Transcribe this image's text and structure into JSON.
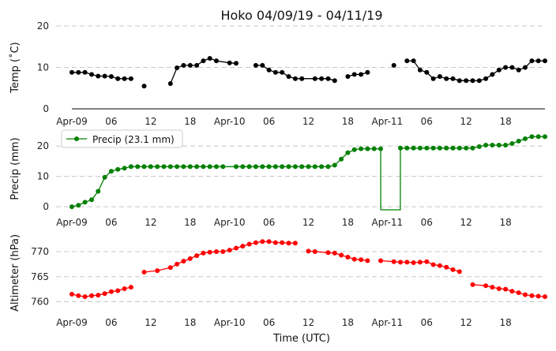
{
  "title": "Hoko 04/09/19 - 04/11/19",
  "xlabel": "Time (UTC)",
  "x_tick_labels": [
    "Apr-09",
    "06",
    "12",
    "18",
    "Apr-10",
    "06",
    "12",
    "18",
    "Apr-11",
    "06",
    "12",
    "18"
  ],
  "chart_data": [
    {
      "type": "line",
      "ylabel": "Temp (˚C)",
      "ylim": [
        0,
        20
      ],
      "yticks": [
        0,
        10,
        20
      ],
      "grid": true,
      "color": "#000000",
      "series": [
        {
          "hours": [
            0,
            1,
            2,
            3,
            4,
            5,
            6,
            7,
            8,
            9,
            10,
            11,
            13,
            15,
            16,
            17,
            18,
            19,
            20,
            21,
            22,
            24,
            25,
            26,
            27,
            28,
            29,
            30,
            31,
            32,
            33,
            34,
            35,
            37,
            38,
            39,
            40,
            41,
            42,
            43,
            44,
            45,
            48,
            49,
            50,
            51,
            52,
            53,
            54,
            55,
            56,
            57,
            58,
            59,
            60,
            61,
            62,
            63,
            64,
            65,
            66,
            67,
            68,
            69,
            70,
            71,
            72
          ],
          "values": [
            8.8,
            8.8,
            8.8,
            8.3,
            7.9,
            7.9,
            7.8,
            7.3,
            7.3,
            7.3,
            null,
            5.5,
            null,
            6.1,
            9.9,
            10.5,
            10.5,
            10.5,
            11.6,
            12.2,
            11.6,
            11.1,
            11.0,
            null,
            null,
            10.5,
            10.5,
            9.4,
            8.8,
            8.8,
            7.8,
            7.3,
            7.3,
            7.3,
            7.3,
            7.3,
            6.8,
            null,
            7.8,
            8.3,
            8.3,
            8.8,
            null,
            10.5,
            null,
            11.6,
            11.6,
            9.4,
            8.8,
            7.3,
            7.8,
            7.3,
            7.3,
            6.8,
            6.8,
            6.8,
            6.8,
            7.3,
            8.3,
            9.4,
            10.0,
            10.0,
            9.4,
            10.0,
            11.6,
            11.6,
            11.6
          ]
        }
      ]
    },
    {
      "type": "line",
      "ylabel": "Precip (mm)",
      "ylim": [
        -1,
        26
      ],
      "yticks": [
        0,
        10,
        20
      ],
      "grid": true,
      "color": "#008000",
      "legend": "Precip (23.1 mm)",
      "legend_position": "top-left",
      "series": [
        {
          "name": "Precip (23.1 mm)",
          "hours": [
            0,
            1,
            2,
            3,
            4,
            5,
            6,
            7,
            8,
            9,
            10,
            11,
            12,
            13,
            14,
            15,
            16,
            17,
            18,
            19,
            20,
            21,
            22,
            23,
            25,
            26,
            27,
            28,
            29,
            30,
            31,
            32,
            33,
            34,
            35,
            36,
            37,
            38,
            39,
            40,
            41,
            42,
            43,
            44,
            45,
            46,
            47,
            47.01,
            49.99,
            50,
            51,
            52,
            53,
            54,
            55,
            56,
            57,
            58,
            59,
            60,
            61,
            62,
            63,
            64,
            65,
            66,
            67,
            68,
            69,
            70,
            71,
            72
          ],
          "values": [
            0.0,
            0.5,
            1.5,
            2.3,
            5.1,
            9.7,
            11.7,
            12.3,
            12.7,
            13.2,
            13.2,
            13.2,
            13.2,
            13.2,
            13.2,
            13.2,
            13.2,
            13.2,
            13.2,
            13.2,
            13.2,
            13.2,
            13.2,
            13.2,
            13.2,
            13.2,
            13.2,
            13.2,
            13.2,
            13.2,
            13.2,
            13.2,
            13.2,
            13.2,
            13.2,
            13.2,
            13.2,
            13.2,
            13.2,
            13.7,
            15.7,
            17.8,
            18.8,
            19.1,
            19.1,
            19.1,
            19.1,
            -1.0,
            -1.0,
            19.3,
            19.3,
            19.3,
            19.3,
            19.3,
            19.3,
            19.3,
            19.3,
            19.3,
            19.3,
            19.3,
            19.3,
            19.8,
            20.3,
            20.3,
            20.3,
            20.3,
            20.8,
            21.6,
            22.4,
            23.1,
            23.1,
            23.1
          ]
        }
      ]
    },
    {
      "type": "line",
      "ylabel": "Altimeter (hPa)",
      "ylim": [
        758.5,
        773
      ],
      "yticks": [
        760,
        765,
        770
      ],
      "grid": true,
      "color": "#ff0000",
      "series": [
        {
          "hours": [
            0,
            1,
            2,
            3,
            4,
            5,
            6,
            7,
            8,
            9,
            10,
            11,
            13,
            15,
            16,
            17,
            18,
            19,
            20,
            21,
            22,
            23,
            24,
            25,
            26,
            27,
            28,
            29,
            30,
            31,
            32,
            33,
            34,
            35,
            36,
            37,
            39,
            40,
            41,
            42,
            43,
            44,
            45,
            46,
            47,
            49,
            50,
            51,
            52,
            53,
            54,
            55,
            56,
            57,
            58,
            59,
            60,
            61,
            63,
            64,
            65,
            66,
            67,
            68,
            69,
            70,
            71,
            72
          ],
          "values": [
            761.5,
            761.2,
            761.0,
            761.2,
            761.3,
            761.6,
            762.0,
            762.2,
            762.6,
            762.9,
            null,
            765.9,
            766.2,
            766.8,
            767.5,
            768.1,
            768.6,
            769.2,
            769.7,
            769.9,
            770.0,
            770.0,
            770.3,
            770.7,
            771.1,
            771.5,
            771.8,
            772.0,
            772.0,
            771.8,
            771.8,
            771.7,
            771.7,
            null,
            770.1,
            770.0,
            769.8,
            769.7,
            769.3,
            768.9,
            768.5,
            768.4,
            768.2,
            null,
            768.2,
            768.0,
            767.9,
            767.9,
            767.8,
            767.9,
            768.0,
            767.4,
            767.2,
            766.9,
            766.4,
            766.0,
            null,
            763.4,
            763.2,
            762.9,
            762.6,
            762.5,
            762.1,
            761.8,
            761.4,
            761.2,
            761.1,
            761.0
          ]
        }
      ]
    }
  ]
}
